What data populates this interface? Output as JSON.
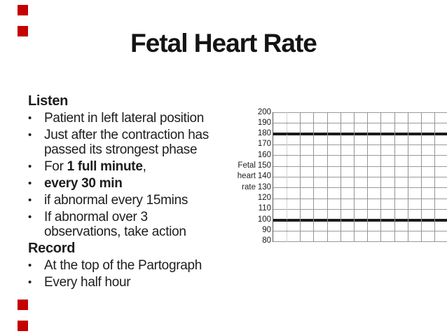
{
  "slide": {
    "title": "Fetal Heart Rate",
    "accent_color": "#c40000",
    "background": "#ffffff",
    "text_color": "#1d1d1d"
  },
  "ui": {
    "bullet_glyph": "•"
  },
  "content": {
    "sections": [
      {
        "heading": "Listen",
        "bullets": [
          {
            "lines": [
              [
                {
                  "t": "Patient in left lateral position",
                  "b": false
                }
              ]
            ]
          },
          {
            "lines": [
              [
                {
                  "t": "Just after the contraction has",
                  "b": false
                }
              ],
              [
                {
                  "t": "passed its strongest phase",
                  "b": false
                }
              ]
            ]
          },
          {
            "lines": [
              [
                {
                  "t": "For ",
                  "b": false
                },
                {
                  "t": "1 full minute",
                  "b": true
                },
                {
                  "t": ",",
                  "b": false
                }
              ]
            ]
          },
          {
            "lines": [
              [
                {
                  "t": "every 30 min",
                  "b": true
                }
              ]
            ]
          },
          {
            "lines": [
              [
                {
                  "t": "if abnormal every 15mins",
                  "b": false
                }
              ]
            ]
          },
          {
            "lines": [
              [
                {
                  "t": "If abnormal over 3",
                  "b": false
                }
              ],
              [
                {
                  "t": "observations, take action",
                  "b": false
                }
              ]
            ]
          }
        ]
      },
      {
        "heading": "Record",
        "bullets": [
          {
            "lines": [
              [
                {
                  "t": "At the top of the Partograph",
                  "b": false
                }
              ]
            ]
          },
          {
            "lines": [
              [
                {
                  "t": "Every half hour",
                  "b": false
                }
              ]
            ]
          }
        ]
      }
    ]
  },
  "chart_data": {
    "type": "line",
    "title": "",
    "xlabel": "",
    "ylabel": "Fetal heart rate",
    "ylabel_lines": [
      "Fetal",
      "heart",
      "rate"
    ],
    "yticks": [
      200,
      190,
      180,
      170,
      160,
      150,
      140,
      130,
      120,
      110,
      100,
      90,
      80
    ],
    "ylim": [
      80,
      200
    ],
    "grid": true,
    "legend": false,
    "x_gridlines": 13,
    "x_first_gridline_style": "dotted",
    "reference_lines": [
      {
        "value": 180,
        "style": "thick-black"
      },
      {
        "value": 100,
        "style": "thick-black"
      }
    ],
    "series": []
  }
}
